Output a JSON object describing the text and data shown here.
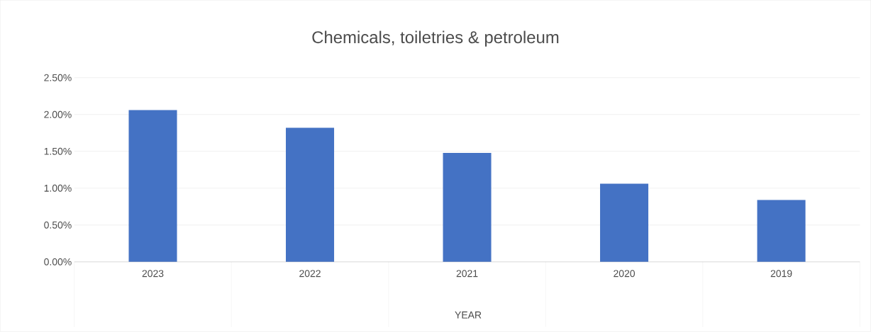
{
  "chart_data": {
    "type": "bar",
    "title": "Chemicals, toiletries & petroleum",
    "xlabel": "YEAR",
    "categories": [
      "2023",
      "2022",
      "2021",
      "2020",
      "2019"
    ],
    "values": [
      2.06,
      1.82,
      1.48,
      1.06,
      0.84
    ],
    "color": "#4472c4",
    "ylim": [
      0,
      2.5
    ],
    "yticks": [
      {
        "value": 0,
        "label": "0.00%"
      },
      {
        "value": 0.5,
        "label": "0.50%"
      },
      {
        "value": 1,
        "label": "1.00%"
      },
      {
        "value": 1.5,
        "label": "1.50%"
      },
      {
        "value": 2,
        "label": "2.00%"
      },
      {
        "value": 2.5,
        "label": "2.50%"
      }
    ],
    "grid": "y"
  }
}
